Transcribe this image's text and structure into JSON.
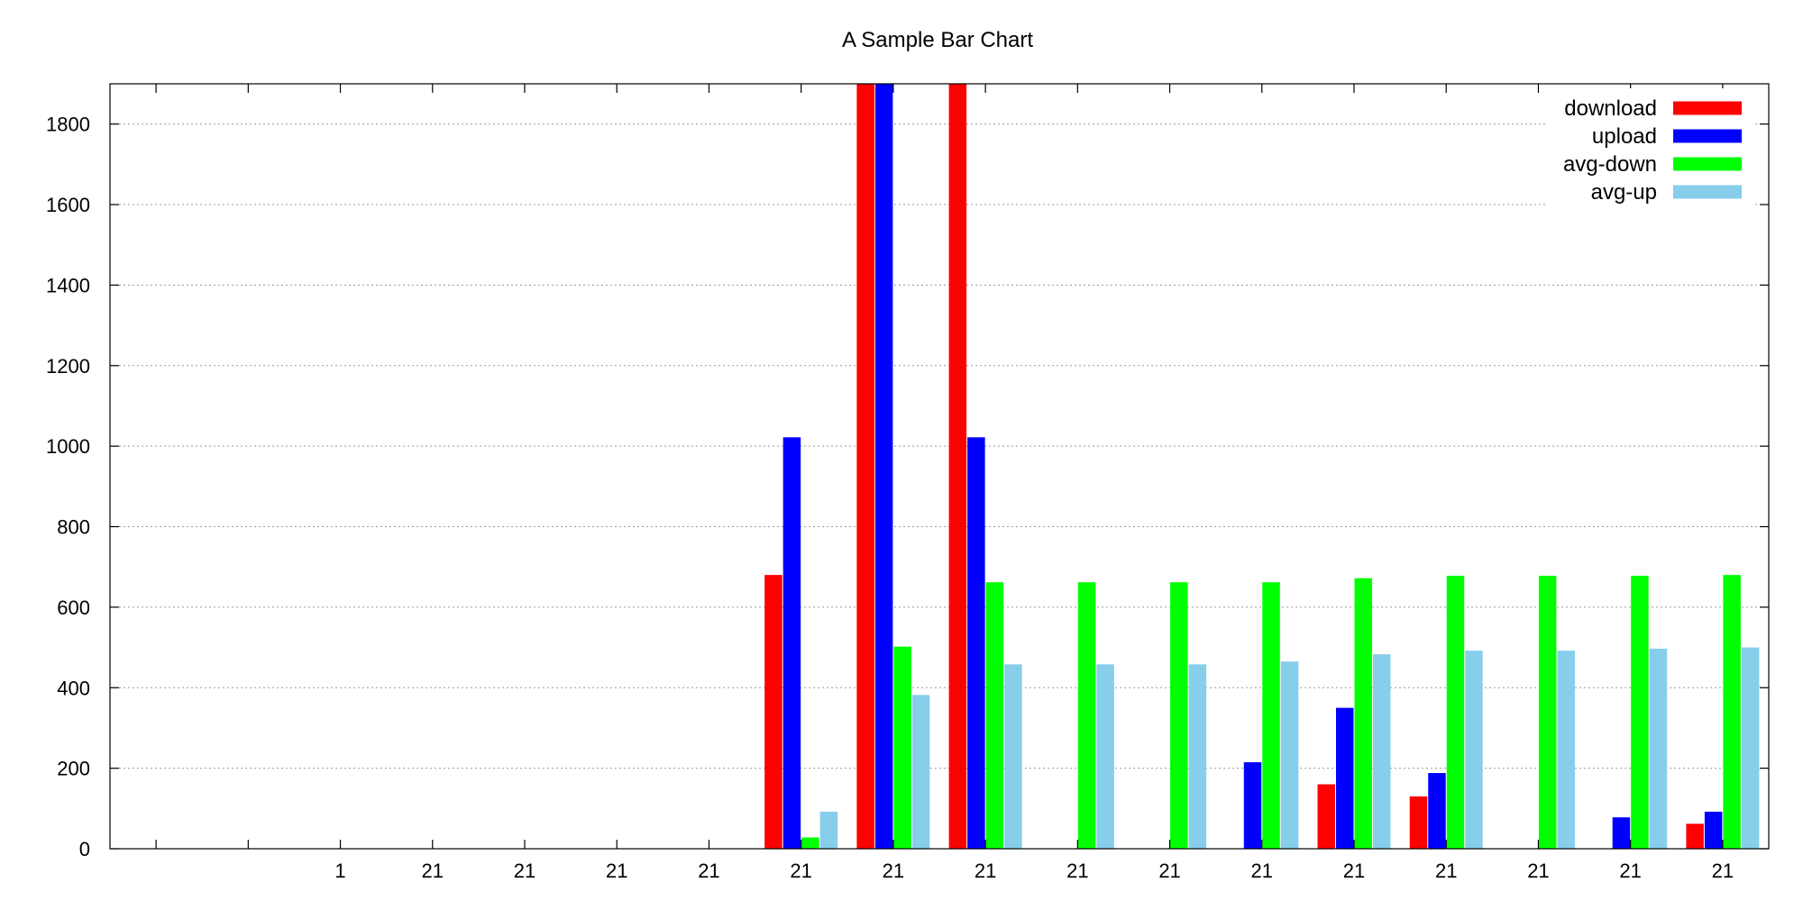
{
  "chart_data": {
    "type": "bar",
    "title": "A Sample Bar Chart",
    "xlabel": "",
    "ylabel": "",
    "ylim": [
      0,
      1900
    ],
    "yticks": [
      0,
      200,
      400,
      600,
      800,
      1000,
      1200,
      1400,
      1600,
      1800
    ],
    "grid": true,
    "legend_position": "top-right",
    "categories": [
      "",
      "",
      "1",
      "21",
      "21",
      "21",
      "21",
      "21",
      "21",
      "21",
      "21",
      "21",
      "21",
      "21",
      "21",
      "21",
      "21",
      "21"
    ],
    "series": [
      {
        "name": "download",
        "color": "#ff0000",
        "values": [
          0,
          0,
          0,
          0,
          0,
          0,
          0,
          680,
          1900,
          1900,
          0,
          0,
          0,
          160,
          130,
          0,
          0,
          62
        ]
      },
      {
        "name": "upload",
        "color": "#0000ff",
        "values": [
          0,
          0,
          0,
          0,
          0,
          0,
          0,
          1022,
          1900,
          1022,
          0,
          0,
          215,
          350,
          188,
          0,
          78,
          92
        ]
      },
      {
        "name": "avg-down",
        "color": "#00ff00",
        "values": [
          0,
          0,
          0,
          0,
          0,
          0,
          0,
          28,
          502,
          662,
          662,
          662,
          662,
          672,
          678,
          678,
          678,
          680
        ]
      },
      {
        "name": "avg-up",
        "color": "#87ceeb",
        "values": [
          0,
          0,
          0,
          0,
          0,
          0,
          0,
          92,
          382,
          458,
          458,
          458,
          465,
          483,
          492,
          492,
          497,
          500
        ]
      }
    ]
  }
}
